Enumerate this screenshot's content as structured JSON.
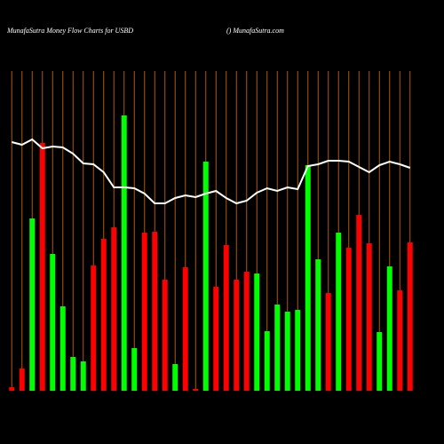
{
  "chart_data": {
    "type": "bar",
    "title": "MunafaSutra  Money Flow  Charts for USBD",
    "subtitle": "() MunafaSutra.com",
    "ylim": [
      0,
      360
    ],
    "grid_color": "#b35900",
    "series": [
      {
        "type": "bar",
        "values": [
          4,
          25,
          194,
          279,
          154,
          95,
          38,
          33,
          141,
          171,
          184,
          310,
          48,
          178,
          179,
          125,
          30,
          139,
          2,
          258,
          117,
          164,
          125,
          134,
          132,
          67,
          97,
          89,
          91,
          254,
          148,
          110,
          178,
          161,
          198,
          166,
          66,
          140,
          113,
          167
        ],
        "colors": [
          "#ff0000",
          "#ff0000",
          "#00ff00",
          "#ff0000",
          "#00ff00",
          "#00ff00",
          "#00ff00",
          "#00ff00",
          "#ff0000",
          "#ff0000",
          "#ff0000",
          "#00ff00",
          "#00ff00",
          "#ff0000",
          "#ff0000",
          "#ff0000",
          "#00ff00",
          "#ff0000",
          "#ff0000",
          "#00ff00",
          "#ff0000",
          "#ff0000",
          "#ff0000",
          "#ff0000",
          "#00ff00",
          "#00ff00",
          "#00ff00",
          "#00ff00",
          "#00ff00",
          "#00ff00",
          "#00ff00",
          "#ff0000",
          "#00ff00",
          "#ff0000",
          "#ff0000",
          "#ff0000",
          "#00ff00",
          "#00ff00",
          "#ff0000",
          "#ff0000"
        ]
      },
      {
        "type": "line",
        "color": "#ffffff",
        "values": [
          280,
          277,
          283,
          273,
          275,
          274,
          267,
          256,
          255,
          246,
          229,
          229,
          228,
          222,
          211,
          211,
          217,
          220,
          218,
          222,
          225,
          217,
          211,
          214,
          223,
          228,
          225,
          229,
          227,
          253,
          255,
          259,
          259,
          258,
          252,
          246,
          254,
          258,
          255,
          251
        ]
      }
    ]
  }
}
